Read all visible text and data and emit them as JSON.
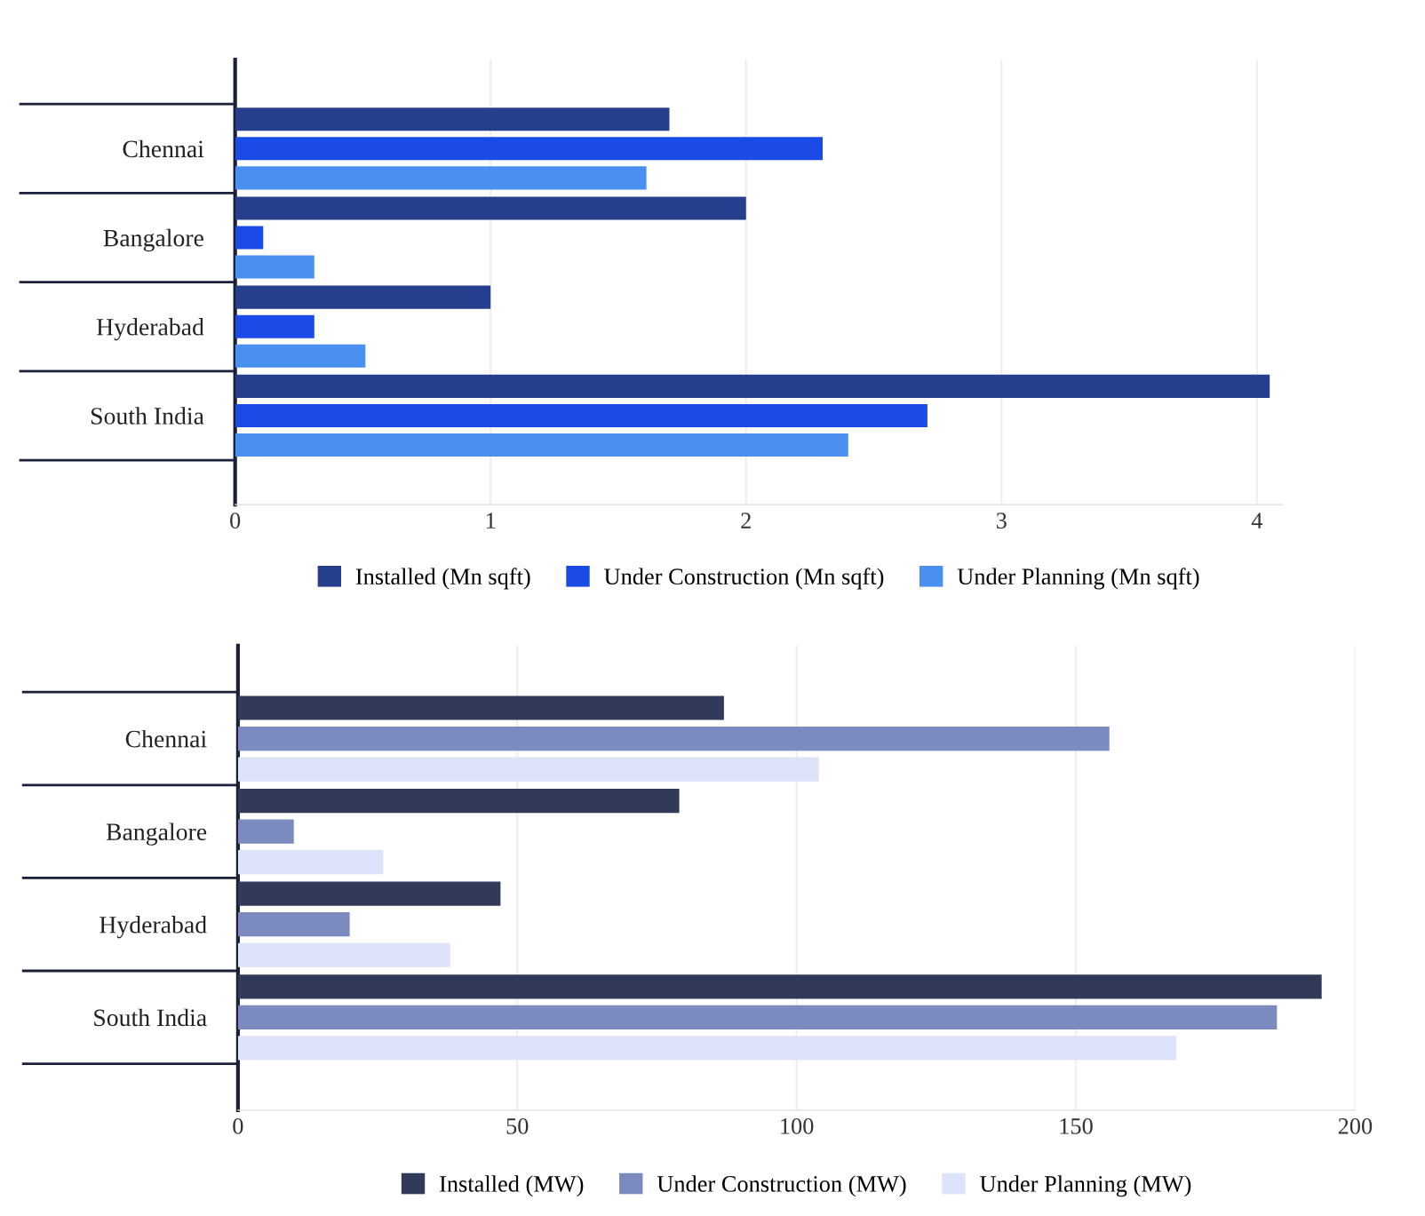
{
  "chart_data": [
    {
      "type": "bar",
      "orientation": "horizontal",
      "categories": [
        "Chennai",
        "Bangalore",
        "Hyderabad",
        "South India"
      ],
      "series": [
        {
          "name": "Installed (Mn sqft)",
          "color": "#263f8c",
          "values": [
            1.7,
            2.0,
            1.0,
            4.05
          ]
        },
        {
          "name": "Under Construction (Mn sqft)",
          "color": "#1a4be6",
          "values": [
            2.3,
            0.11,
            0.31,
            2.71
          ]
        },
        {
          "name": "Under Planning (Mn sqft)",
          "color": "#4a90f0",
          "values": [
            1.61,
            0.31,
            0.51,
            2.4
          ]
        }
      ],
      "xlim": [
        0,
        4.1
      ],
      "xticks": [
        0,
        1,
        2,
        3,
        4
      ],
      "grid": "x",
      "legend": "bottom"
    },
    {
      "type": "bar",
      "orientation": "horizontal",
      "categories": [
        "Chennai",
        "Bangalore",
        "Hyderabad",
        "South India"
      ],
      "series": [
        {
          "name": "Installed (MW)",
          "color": "#323a5a",
          "values": [
            87,
            79,
            47,
            194
          ]
        },
        {
          "name": "Under Construction (MW)",
          "color": "#7b8bbf",
          "values": [
            156,
            10,
            20,
            186
          ]
        },
        {
          "name": "Under Planning (MW)",
          "color": "#dde3f8",
          "values": [
            104,
            26,
            38,
            168
          ]
        }
      ],
      "xlim": [
        0,
        200
      ],
      "xticks": [
        0,
        50,
        100,
        150,
        200
      ],
      "grid": "x",
      "legend": "bottom"
    }
  ]
}
